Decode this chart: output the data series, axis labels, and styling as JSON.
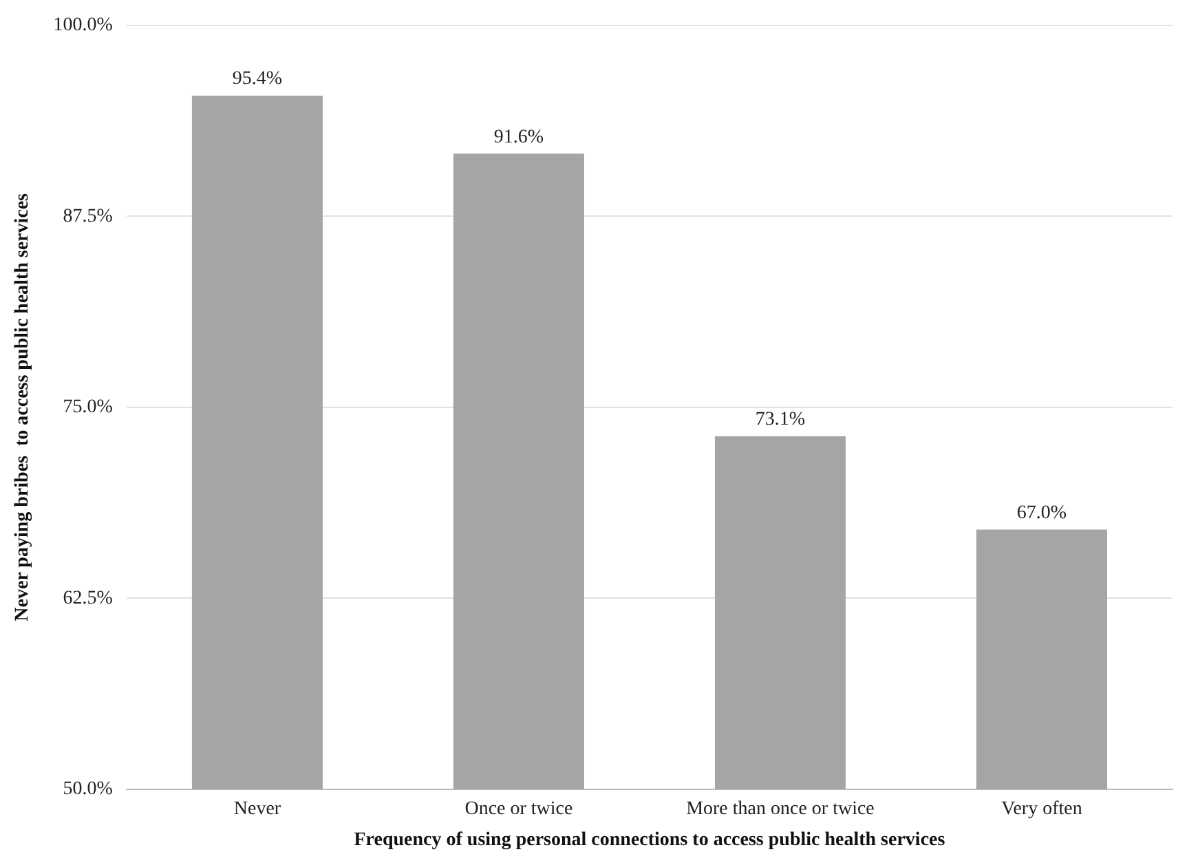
{
  "chart_data": {
    "type": "bar",
    "xlabel": "Frequency of using personal connections to access public health services",
    "ylabel": "Never paying bribes  to access public health services",
    "categories": [
      "Never",
      "Once or twice",
      "More than once or twice",
      "Very often"
    ],
    "values": [
      95.4,
      91.6,
      73.1,
      67.0
    ],
    "color": "#a5a5a5",
    "value_labels": [
      "95.4%",
      "91.6%",
      "73.1%",
      "67.0%"
    ],
    "ylim": [
      50,
      100
    ],
    "yticks": [
      {
        "value": 50,
        "label": "50.0%"
      },
      {
        "value": 62.5,
        "label": "62.5%"
      },
      {
        "value": 75,
        "label": "75.0%"
      },
      {
        "value": 87.5,
        "label": "87.5%"
      },
      {
        "value": 100,
        "label": "100.0%"
      }
    ],
    "grid": "y",
    "legend": false
  }
}
